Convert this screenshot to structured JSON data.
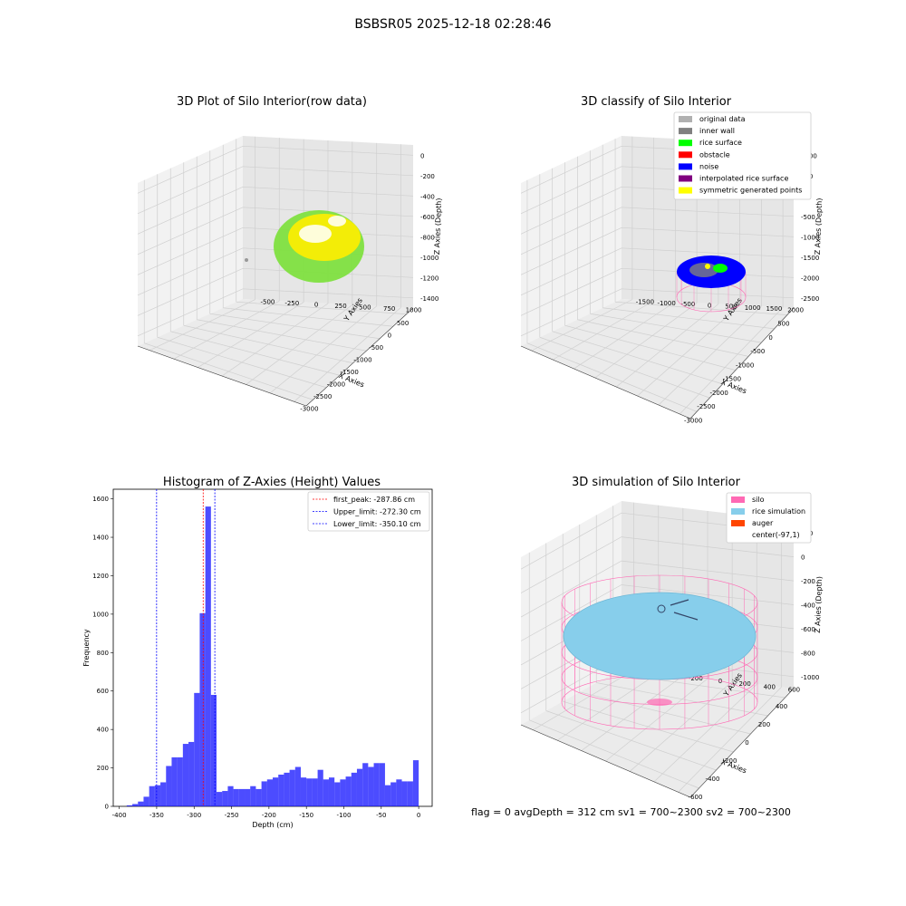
{
  "suptitle": "BSBSR05 2025-12-18 02:28:46",
  "footer": "flag = 0     avgDepth = 312 cm  sv1 = 700~2300  sv2 = 700~2300",
  "chart_data": [
    {
      "type": "scatter3d",
      "title": "3D Plot of Silo Interior(row data)",
      "xlabel": "X Axies",
      "ylabel": "Y Axies",
      "zlabel": "Z Axies (Depth)",
      "xticks": [
        "-3000",
        "-2500",
        "-2000",
        "-1500",
        "-1000",
        "-500",
        "0",
        "500"
      ],
      "yticks": [
        "-500",
        "-250",
        "0",
        "250",
        "500",
        "750",
        "1000"
      ],
      "zticks": [
        "0",
        "-200",
        "-400",
        "-600",
        "-800",
        "-1000",
        "-1200",
        "-1400"
      ],
      "colors": {
        "low": "#7fe040",
        "high": "#ffee00",
        "outlier": "#999999"
      }
    },
    {
      "type": "scatter3d",
      "title": "3D classify of Silo Interior",
      "xlabel": "X Axies",
      "ylabel": "Y Axies",
      "zlabel": "Z Axies (Depth)",
      "xticks": [
        "-3000",
        "-2500",
        "-2000",
        "-1500",
        "-1000",
        "-500",
        "0",
        "500"
      ],
      "yticks": [
        "-1500",
        "-1000",
        "-500",
        "0",
        "500",
        "1000",
        "1500",
        "2000"
      ],
      "zticks": [
        "1000",
        "500",
        "0",
        "-500",
        "-1000",
        "-1500",
        "-2000",
        "-2500"
      ],
      "legend_position": "top-right",
      "legend": [
        {
          "label": "original data",
          "color": "#b0b0b0"
        },
        {
          "label": "inner wall",
          "color": "#808080"
        },
        {
          "label": "rice surface",
          "color": "#00ff00"
        },
        {
          "label": "obstacle",
          "color": "#ff0000"
        },
        {
          "label": "noise",
          "color": "#0000ff"
        },
        {
          "label": "interpolated rice surface",
          "color": "#800080"
        },
        {
          "label": "symmetric generated points",
          "color": "#ffff00"
        }
      ]
    },
    {
      "type": "bar",
      "title": "Histogram of Z-Axies (Height) Values",
      "xlabel": "Depth (cm)",
      "ylabel": "Frequency",
      "xlim": [
        -408,
        18
      ],
      "ylim": [
        0,
        1650
      ],
      "xticks": [
        -400,
        -350,
        -300,
        -250,
        -200,
        -150,
        -100,
        -50,
        0
      ],
      "yticks": [
        0,
        200,
        400,
        600,
        800,
        1000,
        1200,
        1400,
        1600
      ],
      "bar_color": "#0000ff",
      "bin_start": -390,
      "bin_width": 7.5,
      "values": [
        5,
        12,
        25,
        50,
        105,
        110,
        125,
        210,
        255,
        255,
        325,
        335,
        590,
        1005,
        1560,
        580,
        75,
        80,
        105,
        90,
        90,
        90,
        105,
        90,
        130,
        140,
        150,
        165,
        175,
        190,
        205,
        150,
        145,
        145,
        190,
        140,
        150,
        125,
        140,
        155,
        175,
        195,
        225,
        205,
        225,
        225,
        110,
        125,
        140,
        130,
        130,
        240
      ],
      "vlines": [
        {
          "label": "first_peak: -287.86 cm",
          "x": -287.86,
          "color": "#ff0000"
        },
        {
          "label": "Upper_limit: -272.30 cm",
          "x": -272.3,
          "color": "#0000ff"
        },
        {
          "label": "Lower_limit: -350.10 cm",
          "x": -350.1,
          "color": "#0000ff"
        }
      ],
      "legend_position": "top-right"
    },
    {
      "type": "surface3d",
      "title": "3D simulation of Silo Interior",
      "xlabel": "X Axies",
      "ylabel": "Y Axies",
      "zlabel": "Z Axies (Depth)",
      "xticks": [
        "-600",
        "-400",
        "-200",
        "0",
        "200",
        "400"
      ],
      "yticks": [
        "-600",
        "-400",
        "-200",
        "0",
        "200",
        "400",
        "600"
      ],
      "zticks": [
        "200",
        "0",
        "-200",
        "-400",
        "-600",
        "-800",
        "-1000"
      ],
      "legend_position": "top-right",
      "legend": [
        {
          "label": "silo",
          "color": "#ff69b4"
        },
        {
          "label": "rice simulation",
          "color": "#87ceeb"
        },
        {
          "label": "auger",
          "color": "#ff4500"
        },
        {
          "label": "center(-97,1)",
          "color": "#ffffff"
        }
      ]
    }
  ]
}
